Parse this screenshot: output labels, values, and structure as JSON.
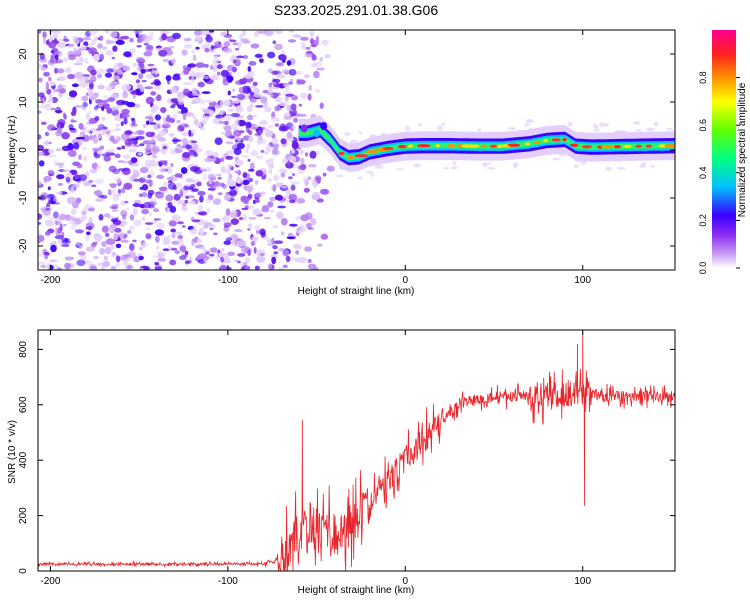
{
  "title": "S233.2025.291.01.38.G06",
  "chart_data": [
    {
      "type": "heatmap",
      "xlabel": "Height of straight line (km)",
      "ylabel": "Frequency (Hz)",
      "xlim": [
        -207,
        152
      ],
      "ylim": [
        -25,
        25
      ],
      "x_ticks": [
        -200,
        -100,
        0,
        100
      ],
      "y_ticks": [
        -20,
        -10,
        0,
        10,
        20
      ],
      "colorbar": {
        "label": "Normalized spectral amplitude",
        "range": [
          0,
          1
        ],
        "ticks": [
          "0.0",
          "0.2",
          "0.4",
          "0.6",
          "0.8"
        ],
        "colors": [
          "#ffffff",
          "#9a3ff0",
          "#3b00ff",
          "#00c0ff",
          "#00ff60",
          "#b0ff00",
          "#ffb000",
          "#ff2020",
          "#ff0090"
        ]
      },
      "ridge": [
        {
          "x": -55,
          "f": 3.5
        },
        {
          "x": -48,
          "f": 4.2
        },
        {
          "x": -42,
          "f": 2.0
        },
        {
          "x": -37,
          "f": -0.5
        },
        {
          "x": -32,
          "f": -1.6
        },
        {
          "x": -26,
          "f": -1.4
        },
        {
          "x": -20,
          "f": -0.4
        },
        {
          "x": -10,
          "f": 0.3
        },
        {
          "x": 0,
          "f": 0.8
        },
        {
          "x": 10,
          "f": 0.9
        },
        {
          "x": 25,
          "f": 0.9
        },
        {
          "x": 40,
          "f": 0.8
        },
        {
          "x": 55,
          "f": 0.8
        },
        {
          "x": 70,
          "f": 1.3
        },
        {
          "x": 80,
          "f": 2.0
        },
        {
          "x": 90,
          "f": 2.2
        },
        {
          "x": 96,
          "f": 0.8
        },
        {
          "x": 105,
          "f": 0.6
        },
        {
          "x": 120,
          "f": 0.7
        },
        {
          "x": 135,
          "f": 0.8
        },
        {
          "x": 152,
          "f": 0.9
        }
      ]
    },
    {
      "type": "line",
      "xlabel": "Height of straight line (km)",
      "ylabel": "SNR (10 * v/v)",
      "xlim": [
        -207,
        152
      ],
      "ylim": [
        0,
        870
      ],
      "x_ticks": [
        -200,
        -100,
        0,
        100
      ],
      "y_ticks": [
        0,
        200,
        400,
        600,
        800
      ],
      "color": "#e8252a",
      "profile": [
        {
          "x": -207,
          "snr": 25
        },
        {
          "x": -80,
          "snr": 25
        },
        {
          "x": -72,
          "snr": 40
        },
        {
          "x": -65,
          "snr": 90
        },
        {
          "x": -55,
          "snr": 180
        },
        {
          "x": -45,
          "snr": 150
        },
        {
          "x": -38,
          "snr": 130
        },
        {
          "x": -30,
          "snr": 170
        },
        {
          "x": -20,
          "snr": 240
        },
        {
          "x": -10,
          "snr": 320
        },
        {
          "x": 0,
          "snr": 400
        },
        {
          "x": 10,
          "snr": 470
        },
        {
          "x": 20,
          "snr": 540
        },
        {
          "x": 30,
          "snr": 600
        },
        {
          "x": 45,
          "snr": 625
        },
        {
          "x": 60,
          "snr": 630
        },
        {
          "x": 75,
          "snr": 635
        },
        {
          "x": 85,
          "snr": 640
        },
        {
          "x": 100,
          "snr": 640
        },
        {
          "x": 120,
          "snr": 630
        },
        {
          "x": 152,
          "snr": 630
        }
      ],
      "spikes": [
        {
          "x": -58,
          "snr": 545
        },
        {
          "x": 84,
          "snr": 720
        },
        {
          "x": 97,
          "snr": 820
        },
        {
          "x": 100,
          "snr": 870
        },
        {
          "x": 101,
          "snr": 235
        }
      ]
    }
  ]
}
